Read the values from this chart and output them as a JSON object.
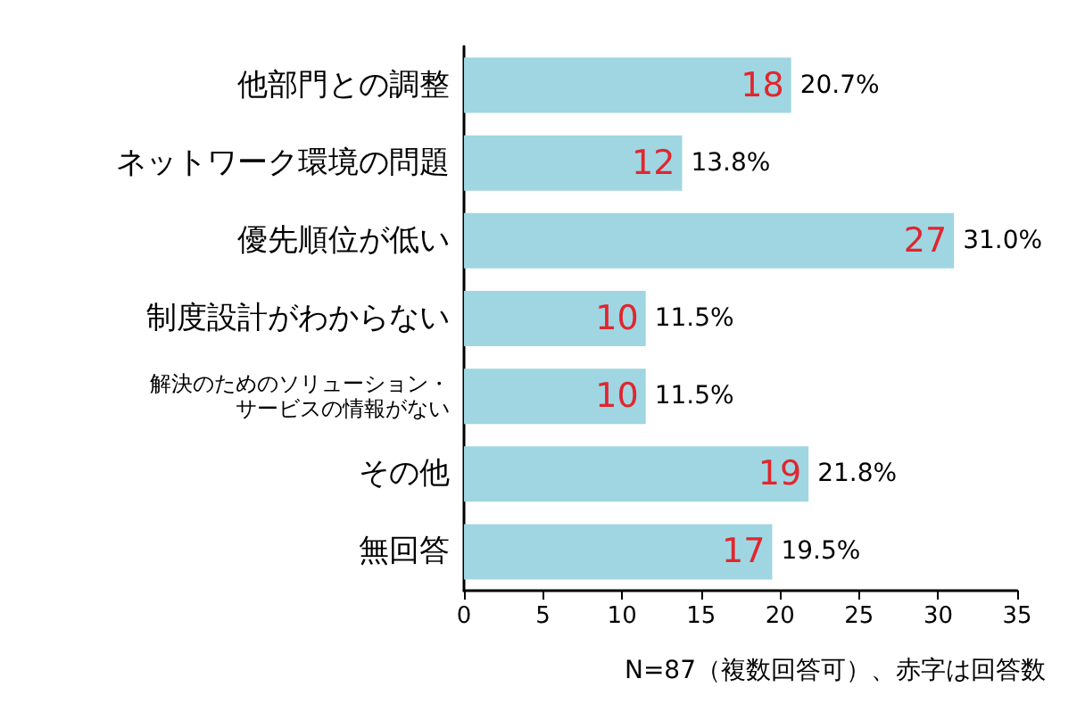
{
  "chart_data": {
    "type": "bar",
    "orientation": "horizontal",
    "categories": [
      "他部門との調整",
      "ネットワーク環境の問題",
      "優先順位が低い",
      "制度設計がわからない",
      "解決のためのソリューション・サービスの情報がない",
      "その他",
      "無回答"
    ],
    "values": [
      20.7,
      13.8,
      31.0,
      11.5,
      11.5,
      21.8,
      19.5
    ],
    "value_labels": [
      "20.7%",
      "13.8%",
      "31.0%",
      "11.5%",
      "11.5%",
      "21.8%",
      "19.5%"
    ],
    "color": "#9fd6e2",
    "xlim": [
      0,
      35
    ],
    "xticks": [
      0,
      5,
      10,
      15,
      20,
      25,
      30,
      35
    ],
    "grid": false,
    "annotations": [
      {
        "text": "18",
        "x": 20.7,
        "y": "他部門との調整"
      },
      {
        "text": "12",
        "x": 13.8,
        "y": "ネットワーク環境の問題"
      },
      {
        "text": "27",
        "x": 31.0,
        "y": "優先順位が低い"
      },
      {
        "text": "10",
        "x": 11.5,
        "y": "制度設計がわからない"
      },
      {
        "text": "10",
        "x": 11.5,
        "y": "解決のためのソリューション・サービスの情報がない"
      },
      {
        "text": "19",
        "x": 21.8,
        "y": "その他"
      },
      {
        "text": "17",
        "x": 19.5,
        "y": "無回答"
      },
      "N=87（複数回答可）、赤字は回答数"
    ]
  }
}
